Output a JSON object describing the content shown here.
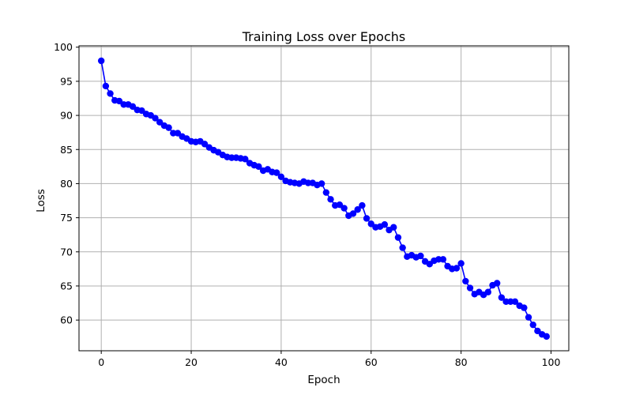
{
  "chart_data": {
    "type": "line",
    "title": "Training Loss over Epochs",
    "xlabel": "Epoch",
    "ylabel": "Loss",
    "xlim": [
      -4.95,
      103.95
    ],
    "ylim": [
      55.5,
      100.2
    ],
    "x_ticks": [
      0,
      20,
      40,
      60,
      80,
      100
    ],
    "y_ticks": [
      60,
      65,
      70,
      75,
      80,
      85,
      90,
      95,
      100
    ],
    "grid": true,
    "legend": "none",
    "series": [
      {
        "color": "#0000ff",
        "marker": "circle",
        "x": [
          0,
          1,
          2,
          3,
          4,
          5,
          6,
          7,
          8,
          9,
          10,
          11,
          12,
          13,
          14,
          15,
          16,
          17,
          18,
          19,
          20,
          21,
          22,
          23,
          24,
          25,
          26,
          27,
          28,
          29,
          30,
          31,
          32,
          33,
          34,
          35,
          36,
          37,
          38,
          39,
          40,
          41,
          42,
          43,
          44,
          45,
          46,
          47,
          48,
          49,
          50,
          51,
          52,
          53,
          54,
          55,
          56,
          57,
          58,
          59,
          60,
          61,
          62,
          63,
          64,
          65,
          66,
          67,
          68,
          69,
          70,
          71,
          72,
          73,
          74,
          75,
          76,
          77,
          78,
          79,
          80,
          81,
          82,
          83,
          84,
          85,
          86,
          87,
          88,
          89,
          90,
          91,
          92,
          93,
          94,
          95,
          96,
          97,
          98,
          99
        ],
        "values": [
          98.0,
          94.3,
          93.2,
          92.2,
          92.1,
          91.6,
          91.6,
          91.3,
          90.8,
          90.7,
          90.2,
          90.0,
          89.6,
          89.0,
          88.5,
          88.2,
          87.4,
          87.4,
          86.9,
          86.6,
          86.2,
          86.1,
          86.2,
          85.8,
          85.3,
          84.9,
          84.6,
          84.2,
          83.9,
          83.8,
          83.8,
          83.7,
          83.6,
          83.0,
          82.7,
          82.5,
          81.9,
          82.1,
          81.7,
          81.6,
          81.0,
          80.4,
          80.2,
          80.1,
          80.0,
          80.3,
          80.1,
          80.1,
          79.8,
          80.0,
          78.7,
          77.7,
          76.8,
          76.9,
          76.4,
          75.3,
          75.6,
          76.2,
          76.8,
          74.9,
          74.1,
          73.6,
          73.7,
          74.0,
          73.2,
          73.6,
          72.1,
          70.6,
          69.3,
          69.5,
          69.2,
          69.4,
          68.6,
          68.2,
          68.7,
          68.9,
          68.9,
          67.9,
          67.5,
          67.6,
          68.3,
          65.7,
          64.7,
          63.8,
          64.1,
          63.7,
          64.1,
          65.1,
          65.4,
          63.3,
          62.7,
          62.7,
          62.7,
          62.1,
          61.8,
          60.4,
          59.3,
          58.4,
          57.9,
          57.6
        ]
      }
    ]
  }
}
